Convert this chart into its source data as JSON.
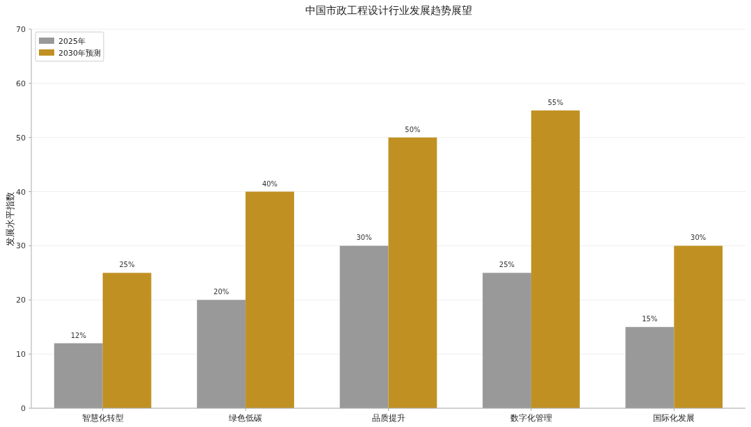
{
  "chart_data": {
    "type": "bar",
    "title": "中国市政工程设计行业发展趋势展望",
    "ylabel": "发展水平指数",
    "categories": [
      "智慧化转型",
      "绿色低碳",
      "品质提升",
      "数字化管理",
      "国际化发展"
    ],
    "series": [
      {
        "name": "2025年",
        "color": "#999999",
        "values": [
          12,
          20,
          30,
          25,
          15
        ],
        "value_labels": [
          "12%",
          "20%",
          "30%",
          "25%",
          "15%"
        ]
      },
      {
        "name": "2030年预测",
        "color": "#c09122",
        "values": [
          25,
          40,
          50,
          55,
          30
        ],
        "value_labels": [
          "25%",
          "40%",
          "50%",
          "55%",
          "30%"
        ]
      }
    ],
    "ylim": [
      0,
      70
    ],
    "yticks": [
      0,
      10,
      20,
      30,
      40,
      50,
      60,
      70
    ],
    "grid": "y",
    "legend": "top left"
  }
}
